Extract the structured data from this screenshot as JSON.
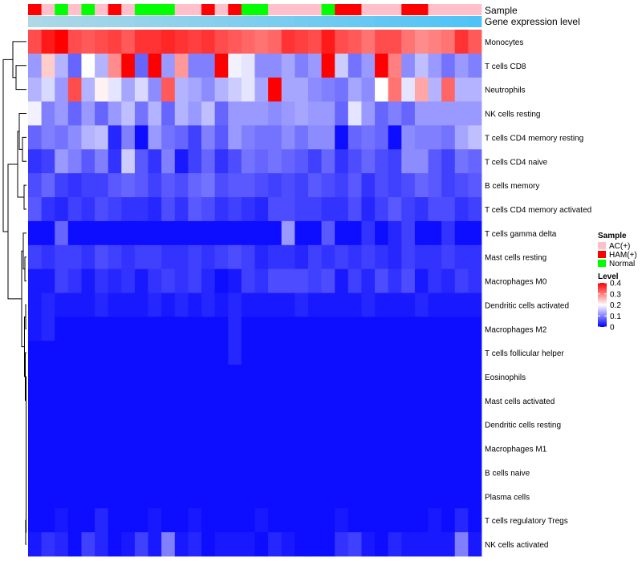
{
  "chart_data": {
    "type": "heatmap",
    "annotation_labels": [
      "Sample",
      "Gene expression level"
    ],
    "row_labels": [
      "Monocytes",
      "T cells CD8",
      "Neutrophils",
      "NK cells resting",
      "T cells CD4 memory resting",
      "T cells CD4 naive",
      "B cells memory",
      "T cells CD4 memory activated",
      "T cells gamma delta",
      "Mast cells resting",
      "Macrophages M0",
      "Dendritic cells activated",
      "Macrophages M2",
      "T cells follicular helper",
      "Eosinophils",
      "Mast cells activated",
      "Dendritic cells resting",
      "Macrophages M1",
      "B cells naive",
      "Plasma cells",
      "T cells regulatory  Tregs",
      "NK cells activated"
    ],
    "sample_groups": [
      "HAM(+)",
      "AC(+)",
      "Normal",
      "AC(+)",
      "Normal",
      "AC(+)",
      "HAM(+)",
      "AC(+)",
      "Normal",
      "Normal",
      "Normal",
      "AC(+)",
      "AC(+)",
      "HAM(+)",
      "AC(+)",
      "HAM(+)",
      "Normal",
      "Normal",
      "AC(+)",
      "AC(+)",
      "AC(+)",
      "AC(+)",
      "Normal",
      "HAM(+)",
      "HAM(+)",
      "AC(+)",
      "AC(+)",
      "AC(+)",
      "HAM(+)",
      "HAM(+)",
      "AC(+)",
      "AC(+)",
      "AC(+)",
      "AC(+)"
    ],
    "values": [
      [
        0.34,
        0.38,
        0.4,
        0.34,
        0.33,
        0.34,
        0.35,
        0.33,
        0.36,
        0.36,
        0.37,
        0.36,
        0.35,
        0.36,
        0.34,
        0.33,
        0.32,
        0.31,
        0.32,
        0.36,
        0.35,
        0.34,
        0.38,
        0.34,
        0.33,
        0.31,
        0.34,
        0.34,
        0.31,
        0.29,
        0.3,
        0.31,
        0.36,
        0.33
      ],
      [
        0.12,
        0.24,
        0.14,
        0.08,
        0.2,
        0.14,
        0.29,
        0.4,
        0.08,
        0.4,
        0.12,
        0.28,
        0.1,
        0.1,
        0.4,
        0.19,
        0.18,
        0.11,
        0.11,
        0.13,
        0.1,
        0.12,
        0.4,
        0.16,
        0.09,
        0.12,
        0.4,
        0.3,
        0.11,
        0.15,
        0.12,
        0.09,
        0.12,
        0.1
      ],
      [
        0.14,
        0.17,
        0.12,
        0.34,
        0.14,
        0.21,
        0.18,
        0.13,
        0.17,
        0.11,
        0.33,
        0.14,
        0.13,
        0.11,
        0.14,
        0.16,
        0.18,
        0.13,
        0.4,
        0.13,
        0.13,
        0.11,
        0.1,
        0.09,
        0.13,
        0.11,
        0.2,
        0.31,
        0.18,
        0.27,
        0.14,
        0.32,
        0.14,
        0.14
      ],
      [
        0.19,
        0.1,
        0.12,
        0.08,
        0.12,
        0.08,
        0.12,
        0.15,
        0.09,
        0.14,
        0.08,
        0.14,
        0.12,
        0.15,
        0.08,
        0.12,
        0.12,
        0.12,
        0.11,
        0.12,
        0.13,
        0.12,
        0.12,
        0.08,
        0.18,
        0.12,
        0.08,
        0.1,
        0.08,
        0.12,
        0.12,
        0.12,
        0.12,
        0.12
      ],
      [
        0.08,
        0.1,
        0.09,
        0.11,
        0.14,
        0.15,
        0.03,
        0.1,
        0.01,
        0.12,
        0.09,
        0.08,
        0.05,
        0.1,
        0.07,
        0.12,
        0.1,
        0.09,
        0.09,
        0.11,
        0.09,
        0.11,
        0.11,
        0.01,
        0.08,
        0.09,
        0.08,
        0.01,
        0.11,
        0.1,
        0.1,
        0.09,
        0.13,
        0.15
      ],
      [
        0.04,
        0.05,
        0.12,
        0.1,
        0.07,
        0.1,
        0.04,
        0.16,
        0.07,
        0.04,
        0.1,
        0.02,
        0.05,
        0.08,
        0.04,
        0.06,
        0.09,
        0.08,
        0.09,
        0.08,
        0.07,
        0.05,
        0.08,
        0.04,
        0.06,
        0.08,
        0.06,
        0.05,
        0.11,
        0.11,
        0.07,
        0.05,
        0.09,
        0.08
      ],
      [
        0.06,
        0.08,
        0.05,
        0.04,
        0.05,
        0.05,
        0.07,
        0.08,
        0.07,
        0.05,
        0.07,
        0.06,
        0.08,
        0.09,
        0.06,
        0.07,
        0.07,
        0.06,
        0.05,
        0.06,
        0.05,
        0.07,
        0.06,
        0.05,
        0.07,
        0.04,
        0.06,
        0.05,
        0.06,
        0.08,
        0.07,
        0.05,
        0.06,
        0.07
      ],
      [
        0.07,
        0.04,
        0.03,
        0.05,
        0.04,
        0.06,
        0.05,
        0.04,
        0.04,
        0.03,
        0.06,
        0.04,
        0.07,
        0.06,
        0.04,
        0.05,
        0.04,
        0.03,
        0.06,
        0.06,
        0.05,
        0.05,
        0.04,
        0.04,
        0.06,
        0.03,
        0.05,
        0.07,
        0.05,
        0.04,
        0.06,
        0.06,
        0.04,
        0.05
      ],
      [
        0.01,
        0.01,
        0.08,
        0.01,
        0.01,
        0.01,
        0.01,
        0.01,
        0.01,
        0.01,
        0.01,
        0.01,
        0.01,
        0.01,
        0.01,
        0.01,
        0.01,
        0.01,
        0.01,
        0.12,
        0.01,
        0.01,
        0.07,
        0.01,
        0.01,
        0.04,
        0.01,
        0.03,
        0.05,
        0.01,
        0.01,
        0.04,
        0.01,
        0.01
      ],
      [
        0.05,
        0.04,
        0.05,
        0.05,
        0.04,
        0.06,
        0.05,
        0.04,
        0.05,
        0.05,
        0.04,
        0.04,
        0.05,
        0.04,
        0.05,
        0.06,
        0.05,
        0.03,
        0.04,
        0.04,
        0.03,
        0.05,
        0.04,
        0.05,
        0.04,
        0.05,
        0.04,
        0.03,
        0.05,
        0.04,
        0.04,
        0.05,
        0.04,
        0.04
      ],
      [
        0.02,
        0.02,
        0.05,
        0.04,
        0.02,
        0.04,
        0.03,
        0.04,
        0.02,
        0.04,
        0.05,
        0.04,
        0.05,
        0.03,
        0.01,
        0.02,
        0.05,
        0.04,
        0.06,
        0.06,
        0.06,
        0.05,
        0.06,
        0.02,
        0.05,
        0.03,
        0.06,
        0.04,
        0.06,
        0.02,
        0.04,
        0.03,
        0.05,
        0.04
      ],
      [
        0.02,
        0.03,
        0.02,
        0.02,
        0.02,
        0.03,
        0.02,
        0.02,
        0.02,
        0.03,
        0.02,
        0.03,
        0.02,
        0.03,
        0.02,
        0.03,
        0.02,
        0.02,
        0.02,
        0.02,
        0.03,
        0.02,
        0.02,
        0.02,
        0.02,
        0.03,
        0.02,
        0.02,
        0.02,
        0.03,
        0.02,
        0.02,
        0.02,
        0.02
      ],
      [
        0.02,
        0.03,
        0.01,
        0.01,
        0.01,
        0.01,
        0.01,
        0.01,
        0.01,
        0.01,
        0.01,
        0.01,
        0.01,
        0.01,
        0.01,
        0.03,
        0.01,
        0.01,
        0.01,
        0.01,
        0.01,
        0.01,
        0.01,
        0.01,
        0.01,
        0.01,
        0.01,
        0.01,
        0.01,
        0.01,
        0.01,
        0.01,
        0.01,
        0.01
      ],
      [
        0.01,
        0.01,
        0.01,
        0.01,
        0.01,
        0.01,
        0.01,
        0.01,
        0.01,
        0.01,
        0.01,
        0.01,
        0.01,
        0.01,
        0.01,
        0.03,
        0.01,
        0.01,
        0.01,
        0.01,
        0.01,
        0.01,
        0.01,
        0.01,
        0.01,
        0.01,
        0.01,
        0.01,
        0.01,
        0.01,
        0.01,
        0.01,
        0.01,
        0.01
      ],
      [
        0.01,
        0.01,
        0.01,
        0.01,
        0.01,
        0.01,
        0.01,
        0.01,
        0.01,
        0.01,
        0.01,
        0.01,
        0.01,
        0.01,
        0.01,
        0.01,
        0.01,
        0.01,
        0.01,
        0.01,
        0.01,
        0.01,
        0.01,
        0.01,
        0.01,
        0.01,
        0.01,
        0.01,
        0.01,
        0.01,
        0.01,
        0.01,
        0.01,
        0.01
      ],
      [
        0.01,
        0.01,
        0.01,
        0.01,
        0.01,
        0.01,
        0.01,
        0.01,
        0.01,
        0.01,
        0.01,
        0.01,
        0.01,
        0.01,
        0.01,
        0.01,
        0.01,
        0.01,
        0.01,
        0.01,
        0.01,
        0.01,
        0.01,
        0.01,
        0.01,
        0.01,
        0.01,
        0.01,
        0.01,
        0.01,
        0.01,
        0.01,
        0.01,
        0.01
      ],
      [
        0.01,
        0.01,
        0.01,
        0.01,
        0.01,
        0.01,
        0.01,
        0.01,
        0.01,
        0.01,
        0.01,
        0.01,
        0.01,
        0.01,
        0.01,
        0.01,
        0.01,
        0.01,
        0.01,
        0.01,
        0.01,
        0.01,
        0.01,
        0.01,
        0.01,
        0.01,
        0.01,
        0.01,
        0.01,
        0.01,
        0.01,
        0.01,
        0.01,
        0.01
      ],
      [
        0.01,
        0.01,
        0.01,
        0.01,
        0.01,
        0.01,
        0.01,
        0.01,
        0.01,
        0.01,
        0.01,
        0.01,
        0.01,
        0.01,
        0.01,
        0.01,
        0.01,
        0.01,
        0.01,
        0.01,
        0.01,
        0.01,
        0.01,
        0.01,
        0.01,
        0.01,
        0.01,
        0.01,
        0.01,
        0.01,
        0.01,
        0.01,
        0.01,
        0.01
      ],
      [
        0.01,
        0.01,
        0.01,
        0.01,
        0.01,
        0.01,
        0.01,
        0.01,
        0.01,
        0.01,
        0.01,
        0.01,
        0.01,
        0.01,
        0.01,
        0.01,
        0.01,
        0.01,
        0.01,
        0.01,
        0.01,
        0.01,
        0.01,
        0.01,
        0.01,
        0.01,
        0.01,
        0.01,
        0.01,
        0.01,
        0.01,
        0.01,
        0.01,
        0.01
      ],
      [
        0.01,
        0.01,
        0.01,
        0.01,
        0.01,
        0.01,
        0.01,
        0.01,
        0.01,
        0.01,
        0.01,
        0.01,
        0.01,
        0.01,
        0.01,
        0.01,
        0.01,
        0.01,
        0.01,
        0.01,
        0.01,
        0.01,
        0.01,
        0.01,
        0.01,
        0.01,
        0.01,
        0.01,
        0.01,
        0.01,
        0.01,
        0.01,
        0.01,
        0.01
      ],
      [
        0.01,
        0.01,
        0.02,
        0.01,
        0.01,
        0.03,
        0.01,
        0.01,
        0.01,
        0.02,
        0.01,
        0.01,
        0.02,
        0.01,
        0.01,
        0.01,
        0.01,
        0.02,
        0.01,
        0.01,
        0.01,
        0.01,
        0.01,
        0.02,
        0.01,
        0.01,
        0.01,
        0.01,
        0.01,
        0.01,
        0.02,
        0.01,
        0.03,
        0.01
      ],
      [
        0.02,
        0.04,
        0.03,
        0.01,
        0.05,
        0.03,
        0.01,
        0.02,
        0.05,
        0.02,
        0.1,
        0.02,
        0.03,
        0.01,
        0.02,
        0.02,
        0.02,
        0.01,
        0.03,
        0.02,
        0.01,
        0.01,
        0.01,
        0.04,
        0.05,
        0.02,
        0.01,
        0.03,
        0.02,
        0.02,
        0.02,
        0.02,
        0.1,
        0.02
      ]
    ],
    "legend": {
      "sample_title": "Sample",
      "sample_entries": [
        {
          "label": "AC(+)",
          "color": "#FFC0CB"
        },
        {
          "label": "HAM(+)",
          "color": "#FF0000"
        },
        {
          "label": "Normal",
          "color": "#00FF00"
        }
      ],
      "level_title": "Level",
      "level_ticks": [
        "0.4",
        "0.3",
        "0.2",
        "0.1",
        "0"
      ],
      "level_range": [
        0,
        0.4
      ]
    },
    "colors": {
      "low": "#0000FF",
      "mid": "#FFFFFF",
      "high": "#FF0000",
      "expr_start": "#ADD8E6",
      "expr_end": "#4FC3F7"
    }
  }
}
